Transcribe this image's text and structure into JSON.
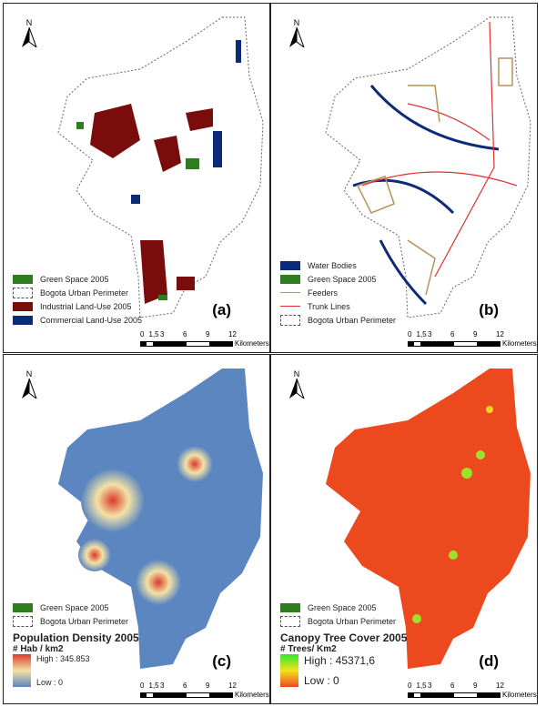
{
  "north_label": "N",
  "scale": {
    "ticks": [
      "0",
      "1,5",
      "3",
      "6",
      "9",
      "12"
    ],
    "unit": "Kilometers"
  },
  "panels": [
    {
      "tag": "(a)",
      "legend": [
        {
          "label": "Green Space 2005",
          "type": "fill",
          "color": "#2e7d1e"
        },
        {
          "label": "Bogota Urban Perimeter",
          "type": "dashed"
        },
        {
          "label": "Industrial Land-Use 2005",
          "type": "fill",
          "color": "#7a0c0c"
        },
        {
          "label": "Commercial Land-Use 2005",
          "type": "fill",
          "color": "#0b2a7a"
        }
      ]
    },
    {
      "tag": "(b)",
      "legend": [
        {
          "label": "Water Bodies",
          "type": "fill",
          "color": "#0b2a7a"
        },
        {
          "label": "Green Space 2005",
          "type": "fill",
          "color": "#2e7d1e"
        },
        {
          "label": "Feeders",
          "type": "line",
          "color": "#b8925a"
        },
        {
          "label": "Trunk Lines",
          "type": "line",
          "color": "#e03030"
        },
        {
          "label": "Bogota Urban Perimeter",
          "type": "dashed"
        }
      ]
    },
    {
      "tag": "(c)",
      "legend": [
        {
          "label": "Green Space 2005",
          "type": "fill",
          "color": "#2e7d1e"
        },
        {
          "label": "Bogota Urban Perimeter",
          "type": "dashed"
        }
      ],
      "title": "Population Density 2005",
      "subtitle": "# Hab / km2",
      "high": "High : 345.853",
      "low": "Low : 0"
    },
    {
      "tag": "(d)",
      "legend": [
        {
          "label": "Green Space 2005",
          "type": "fill",
          "color": "#2e7d1e"
        },
        {
          "label": "Bogota Urban Perimeter",
          "type": "dashed"
        }
      ],
      "title": "Canopy Tree Cover 2005",
      "subtitle": "# Trees/ Km2",
      "high": "High : 45371,6",
      "low": "Low : 0"
    }
  ]
}
